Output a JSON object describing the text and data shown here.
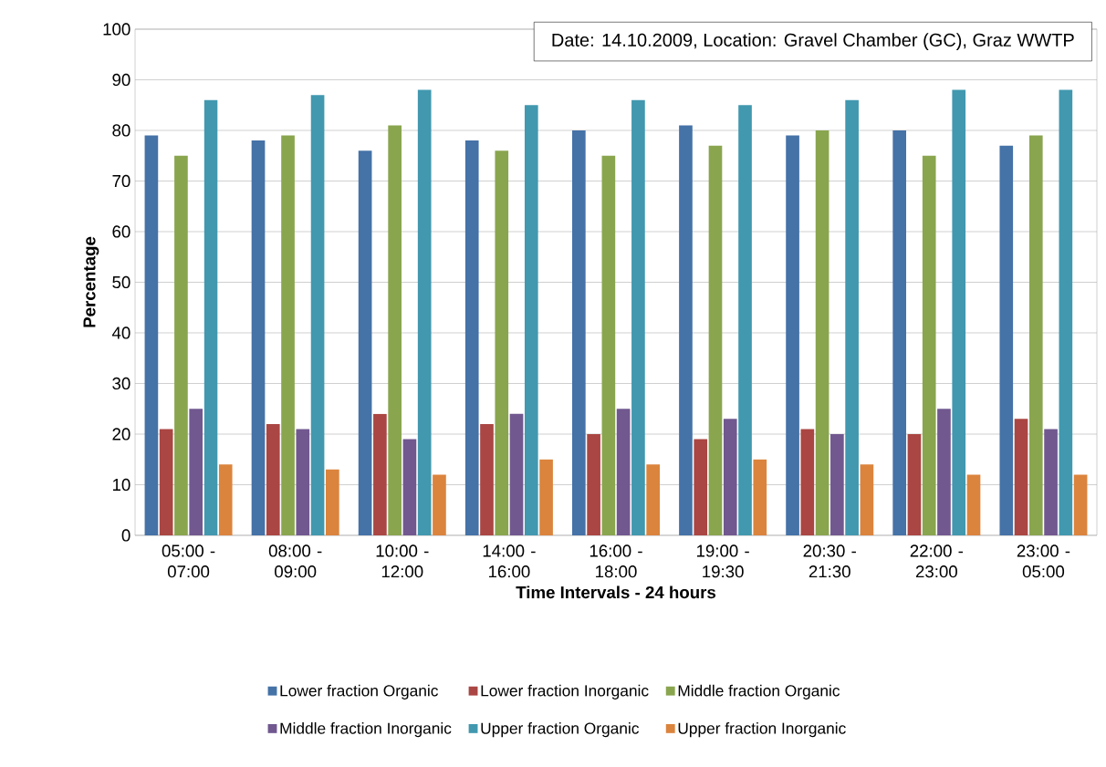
{
  "chart_data": {
    "type": "bar",
    "title": "Date: 14.10.2009, Location: Gravel Chamber (GC), Graz WWTP",
    "xlabel": "Time Intervals - 24 hours",
    "ylabel": "Percentage",
    "categories": [
      "05:00 - 07:00",
      "08:00 - 09:00",
      "10:00 - 12:00",
      "14:00 - 16:00",
      "16:00 - 18:00",
      "19:00 - 19:30",
      "20:30 - 21:30",
      "22:00 - 23:00",
      "23:00 - 05:00"
    ],
    "series": [
      {
        "name": "Lower fraction Organic",
        "color": "#4572a7",
        "values": [
          79,
          78,
          76,
          78,
          80,
          81,
          79,
          80,
          77
        ]
      },
      {
        "name": "Lower fraction Inorganic",
        "color": "#aa4643",
        "values": [
          21,
          22,
          24,
          22,
          20,
          19,
          21,
          20,
          23
        ]
      },
      {
        "name": "Middle fraction Organic",
        "color": "#89a54e",
        "values": [
          75,
          79,
          81,
          76,
          75,
          77,
          80,
          75,
          79
        ]
      },
      {
        "name": "Middle fraction Inorganic",
        "color": "#71588f",
        "values": [
          25,
          21,
          19,
          24,
          25,
          23,
          20,
          25,
          21
        ]
      },
      {
        "name": "Upper fraction Organic",
        "color": "#4198af",
        "values": [
          86,
          87,
          88,
          85,
          86,
          85,
          86,
          88,
          88
        ]
      },
      {
        "name": "Upper fraction Inorganic",
        "color": "#db843d",
        "values": [
          14,
          13,
          12,
          15,
          14,
          15,
          14,
          12,
          12
        ]
      }
    ],
    "ylim": [
      0,
      100
    ],
    "yticks": [
      0,
      10,
      20,
      30,
      40,
      50,
      60,
      70,
      80,
      90,
      100
    ],
    "grid": "y",
    "legend": "bottom"
  }
}
